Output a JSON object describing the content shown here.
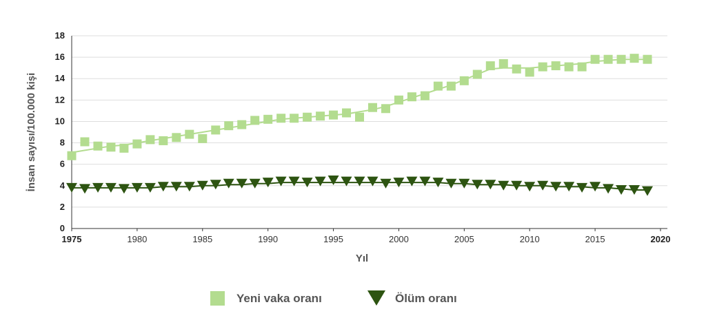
{
  "chart_data": {
    "type": "line",
    "title": "",
    "xlabel": "Yıl",
    "ylabel": "İnsan sayısı/100.000 kişi",
    "xlim": [
      1975,
      2020
    ],
    "ylim": [
      0,
      18
    ],
    "x_ticks": [
      1975,
      1980,
      1985,
      1990,
      1995,
      2000,
      2005,
      2010,
      2015,
      2020
    ],
    "x_tick_labels": [
      "1975",
      "1980",
      "1985",
      "1990",
      "1995",
      "2000",
      "2005",
      "2010",
      "2015",
      "2020"
    ],
    "x_bold_ticks": [
      "1975",
      "2020"
    ],
    "y_ticks": [
      0,
      2,
      4,
      6,
      8,
      10,
      12,
      14,
      16,
      18
    ],
    "y_tick_labels": [
      "0",
      "2",
      "4",
      "6",
      "8",
      "10",
      "12",
      "14",
      "16",
      "18"
    ],
    "grid": true,
    "legend_position": "bottom",
    "x": [
      1975,
      1976,
      1977,
      1978,
      1979,
      1980,
      1981,
      1982,
      1983,
      1984,
      1985,
      1986,
      1987,
      1988,
      1989,
      1990,
      1991,
      1992,
      1993,
      1994,
      1995,
      1996,
      1997,
      1998,
      1999,
      2000,
      2001,
      2002,
      2003,
      2004,
      2005,
      2006,
      2007,
      2008,
      2009,
      2010,
      2011,
      2012,
      2013,
      2014,
      2015,
      2016,
      2017,
      2018,
      2019
    ],
    "series": [
      {
        "name": "Yeni vaka oranı",
        "marker": "square",
        "color": "#b3dc8f",
        "values": [
          6.8,
          8.1,
          7.7,
          7.6,
          7.5,
          7.9,
          8.3,
          8.2,
          8.5,
          8.8,
          8.4,
          9.2,
          9.6,
          9.7,
          10.1,
          10.2,
          10.3,
          10.3,
          10.4,
          10.5,
          10.6,
          10.8,
          10.4,
          11.3,
          11.2,
          12.0,
          12.3,
          12.4,
          13.3,
          13.3,
          13.8,
          14.4,
          15.2,
          15.4,
          14.9,
          14.6,
          15.1,
          15.2,
          15.1,
          15.1,
          15.8,
          15.8,
          15.8,
          15.9,
          15.8
        ],
        "trend": [
          7.1,
          7.3,
          7.5,
          7.7,
          7.8,
          8.0,
          8.2,
          8.4,
          8.6,
          8.8,
          9.0,
          9.2,
          9.4,
          9.6,
          9.8,
          10.0,
          10.2,
          10.3,
          10.4,
          10.5,
          10.6,
          10.7,
          10.9,
          11.1,
          11.4,
          11.8,
          12.2,
          12.6,
          13.0,
          13.4,
          13.9,
          14.4,
          14.9,
          15.0,
          15.0,
          15.0,
          15.1,
          15.2,
          15.3,
          15.4,
          15.6,
          15.7,
          15.8,
          15.8,
          15.8
        ]
      },
      {
        "name": "Ölüm oranı",
        "marker": "triangle-down",
        "color": "#2d5411",
        "values": [
          3.8,
          3.7,
          3.8,
          3.8,
          3.7,
          3.8,
          3.8,
          3.9,
          3.9,
          3.9,
          4.0,
          4.1,
          4.2,
          4.2,
          4.2,
          4.3,
          4.4,
          4.4,
          4.3,
          4.4,
          4.5,
          4.4,
          4.4,
          4.4,
          4.2,
          4.3,
          4.4,
          4.4,
          4.3,
          4.2,
          4.2,
          4.1,
          4.1,
          4.0,
          4.0,
          3.9,
          4.0,
          3.9,
          3.9,
          3.8,
          3.9,
          3.7,
          3.6,
          3.6,
          3.5
        ],
        "trend": [
          3.8,
          3.8,
          3.8,
          3.8,
          3.8,
          3.8,
          3.8,
          3.9,
          3.9,
          3.9,
          4.0,
          4.0,
          4.1,
          4.1,
          4.2,
          4.2,
          4.3,
          4.3,
          4.3,
          4.3,
          4.3,
          4.3,
          4.3,
          4.3,
          4.3,
          4.3,
          4.3,
          4.3,
          4.3,
          4.2,
          4.2,
          4.1,
          4.1,
          4.1,
          4.0,
          4.0,
          4.0,
          3.9,
          3.9,
          3.9,
          3.8,
          3.8,
          3.7,
          3.6,
          3.6
        ]
      }
    ]
  }
}
